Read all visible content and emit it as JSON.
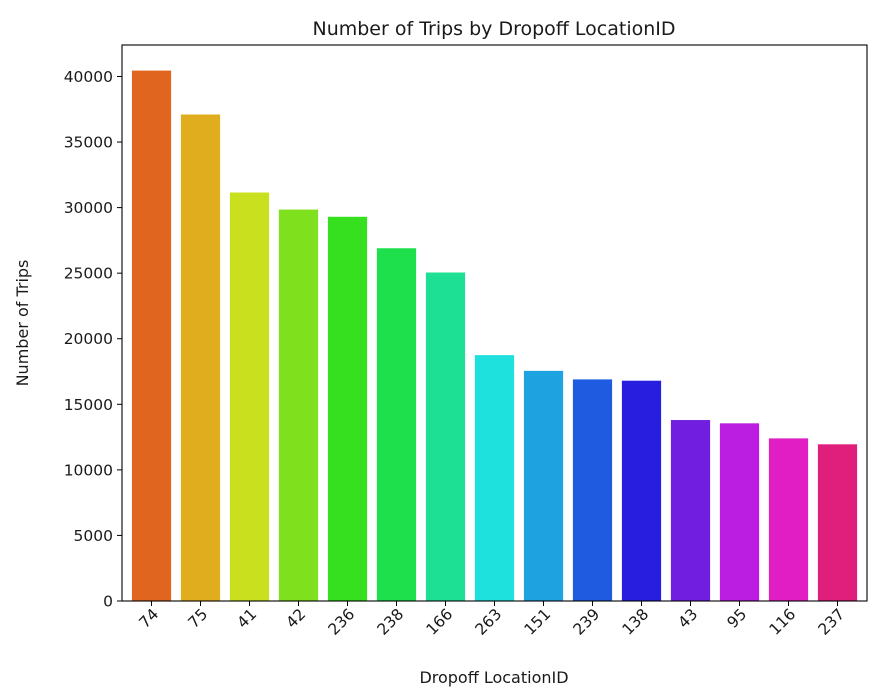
{
  "chart_data": {
    "type": "bar",
    "title": "Number of Trips by Dropoff LocationID",
    "xlabel": "Dropoff LocationID",
    "ylabel": "Number of Trips",
    "categories": [
      "74",
      "75",
      "41",
      "42",
      "236",
      "238",
      "166",
      "263",
      "151",
      "239",
      "138",
      "43",
      "95",
      "116",
      "237"
    ],
    "values": [
      40450,
      37100,
      31150,
      29850,
      29300,
      26900,
      25050,
      18750,
      17550,
      16900,
      16800,
      13800,
      13550,
      12400,
      11950
    ],
    "colors": [
      "#e0651e",
      "#e0ad1e",
      "#c9e01e",
      "#7fe01e",
      "#36e01e",
      "#1ee04c",
      "#1ee094",
      "#1ee0dd",
      "#1ea3e0",
      "#1e5be0",
      "#281ee0",
      "#721ee0",
      "#bb1ee0",
      "#e01ec4",
      "#e01e7b"
    ],
    "yticks": [
      0,
      5000,
      10000,
      15000,
      20000,
      25000,
      30000,
      35000,
      40000
    ],
    "ylim": [
      0,
      42400
    ],
    "grid": false,
    "xtick_rotation": 45
  }
}
